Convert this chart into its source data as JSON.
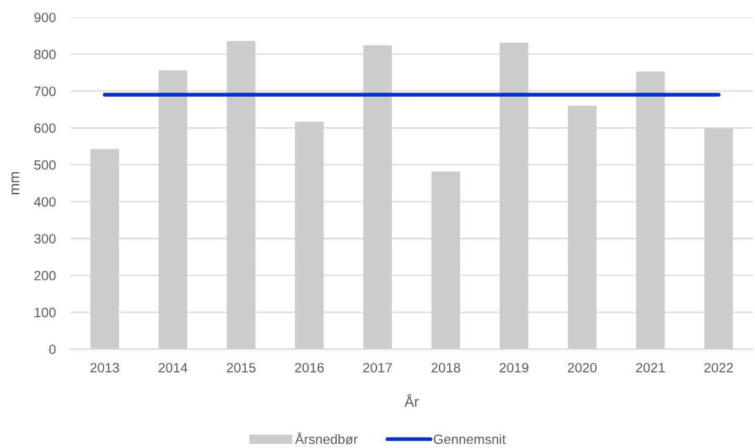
{
  "chart_data": {
    "type": "bar",
    "xlabel": "År",
    "ylabel": "mm",
    "categories": [
      "2013",
      "2014",
      "2015",
      "2016",
      "2017",
      "2018",
      "2019",
      "2020",
      "2021",
      "2022"
    ],
    "series": [
      {
        "name": "Årsnedbør",
        "color": "#cccccc",
        "values": [
          543,
          756,
          836,
          617,
          824,
          482,
          831,
          660,
          753,
          598
        ]
      },
      {
        "name": "Gennemsnit",
        "type": "line",
        "color": "#0033cc",
        "values": [
          690,
          690,
          690,
          690,
          690,
          690,
          690,
          690,
          690,
          690
        ]
      }
    ],
    "ylim": [
      0,
      900
    ],
    "yticks": [
      0,
      100,
      200,
      300,
      400,
      500,
      600,
      700,
      800,
      900
    ],
    "grid": "y",
    "legend": "bottom",
    "marker": "none",
    "line_style": "solid"
  }
}
